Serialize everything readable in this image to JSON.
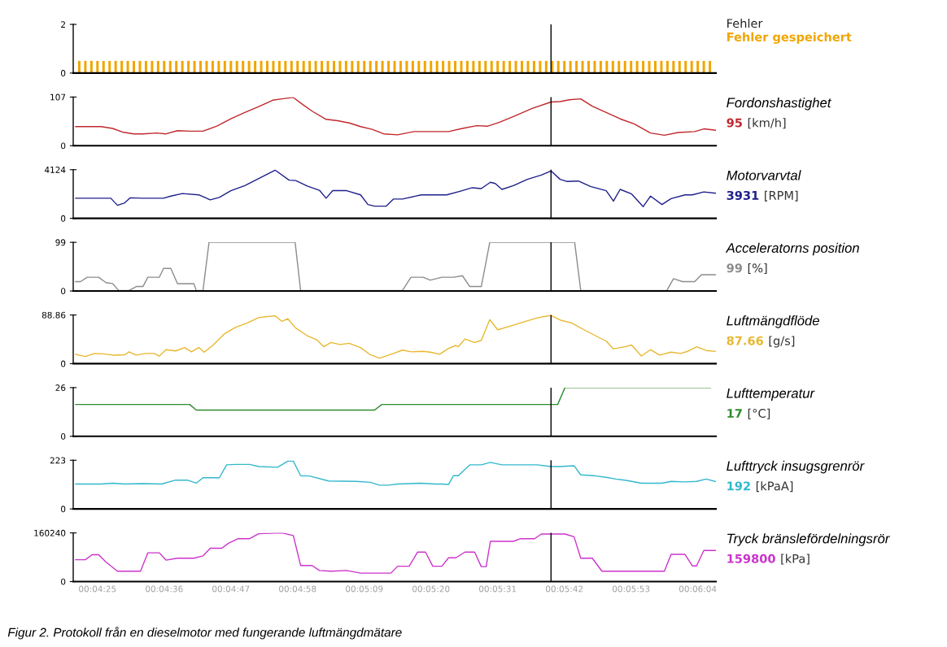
{
  "chart_data": [
    {
      "type": "bar",
      "xlim": [
        261,
        367
      ],
      "ylim": [
        0,
        2
      ],
      "yticks": [
        0,
        2
      ],
      "tick_labels": "y",
      "annotations": [
        "Fehler"
      ],
      "series": [
        {
          "name": "Fehler gespeichert",
          "color": "#f0a500",
          "x": [
            262,
            263,
            264,
            265,
            266,
            267,
            268,
            269,
            270,
            271,
            272,
            273,
            274,
            275,
            276,
            277,
            278,
            279,
            280,
            281,
            282,
            283,
            284,
            285,
            286,
            287,
            288,
            289,
            290,
            291,
            292,
            293,
            294,
            295,
            296,
            297,
            298,
            299,
            300,
            301,
            302,
            303,
            304,
            305,
            306,
            307,
            308,
            309,
            310,
            311,
            312,
            313,
            314,
            315,
            316,
            317,
            318,
            319,
            320,
            321,
            322,
            323,
            324,
            325,
            326,
            327,
            328,
            329,
            330,
            331,
            332,
            333,
            334,
            335,
            336,
            337,
            338,
            339,
            340,
            341,
            342,
            343,
            344,
            345,
            346,
            347,
            348,
            349,
            350,
            351,
            352,
            353,
            354,
            355,
            356,
            357,
            358,
            359,
            360,
            361,
            362,
            363,
            364,
            365,
            366
          ],
          "values": [
            0.5,
            0.5,
            0.5,
            0.5,
            0.5,
            0.5,
            0.5,
            0.5,
            0.5,
            0.5,
            0.5,
            0.5,
            0.5,
            0.5,
            0.5,
            0.5,
            0.5,
            0.5,
            0.5,
            0.5,
            0.5,
            0.5,
            0.5,
            0.5,
            0.5,
            0.5,
            0.5,
            0.5,
            0.5,
            0.5,
            0.5,
            0.5,
            0.5,
            0.5,
            0.5,
            0.5,
            0.5,
            0.5,
            0.5,
            0.5,
            0.5,
            0.5,
            0.5,
            0.5,
            0.5,
            0.5,
            0.5,
            0.5,
            0.5,
            0.5,
            0.5,
            0.5,
            0.5,
            0.5,
            0.5,
            0.5,
            0.5,
            0.5,
            0.5,
            0.5,
            0.5,
            0.5,
            0.5,
            0.5,
            0.5,
            0.5,
            0.5,
            0.5,
            0.5,
            0.5,
            0.5,
            0.5,
            0.5,
            0.5,
            0.5,
            0.5,
            0.5,
            0.5,
            0.5,
            0.5,
            0.5,
            0.5,
            0.5,
            0.5,
            0.5,
            0.5,
            0.5,
            0.5,
            0.5,
            0.5,
            0.5,
            0.5,
            0.5,
            0.5,
            0.5,
            0.5,
            0.5,
            0.5,
            0.5,
            0.5,
            0.5,
            0.5,
            0.5,
            0.5,
            0.5
          ]
        }
      ],
      "ref_lines": [
        {
          "axis": "x",
          "value": 339.8,
          "color": "#000000"
        }
      ]
    },
    {
      "type": "line",
      "xlim": [
        261,
        367
      ],
      "ylim": [
        0,
        107
      ],
      "yticks": [
        0,
        107
      ],
      "tick_labels": "y",
      "annotations": [
        "Fordonshastighet",
        "95",
        "[km/h]"
      ],
      "series": [
        {
          "color": "#c0282d",
          "x": [
            261.4,
            265.6,
            267.5,
            269.1,
            271.0,
            272.5,
            274.8,
            276.3,
            278.2,
            280.2,
            282.4,
            284.7,
            287.0,
            289.3,
            291.6,
            293.9,
            295.4,
            297.3,
            298.9,
            300.4,
            302.7,
            304.6,
            306.5,
            308.4,
            310.3,
            312.2,
            314.5,
            317.2,
            319.9,
            322.9,
            325.2,
            327.5,
            329.4,
            331.4,
            333.6,
            336.7,
            339.8,
            341.3,
            342.8,
            344.7,
            346.6,
            348.9,
            351.2,
            353.5,
            356.2,
            358.5,
            360.8,
            363.5,
            365.0,
            366.9
          ],
          "values": [
            42,
            42,
            38,
            30,
            26,
            26,
            28,
            26,
            33,
            32,
            32,
            43,
            59,
            73,
            86,
            100,
            103,
            106,
            90,
            76,
            58,
            55,
            50,
            42,
            36,
            26,
            24,
            31,
            31,
            31,
            38,
            44,
            43,
            52,
            64,
            82,
            96,
            97,
            101,
            103,
            87,
            73,
            59,
            48,
            28,
            23,
            29,
            31,
            37,
            34
          ]
        }
      ],
      "ref_lines": [
        {
          "axis": "x",
          "value": 339.8,
          "color": "#000000"
        }
      ]
    },
    {
      "type": "line",
      "xlim": [
        261,
        367
      ],
      "ylim": [
        0,
        4124
      ],
      "yticks": [
        0,
        4124
      ],
      "tick_labels": "y",
      "annotations": [
        "Motorvarvtal",
        "3931",
        "[RPM]"
      ],
      "series": [
        {
          "color": "#1f1f8c",
          "x": [
            261.4,
            267.2,
            268.3,
            269.5,
            270.4,
            272.5,
            275.9,
            277.1,
            279.0,
            281.7,
            283.6,
            285.1,
            287.0,
            289.3,
            291.6,
            294.3,
            296.6,
            297.7,
            299.6,
            301.6,
            302.7,
            303.8,
            306.1,
            308.4,
            309.6,
            310.7,
            312.6,
            313.8,
            315.3,
            318.4,
            322.6,
            324.9,
            326.8,
            328.3,
            329.8,
            330.6,
            331.7,
            333.6,
            335.9,
            338.2,
            339.8,
            341.3,
            342.4,
            344.3,
            346.3,
            348.9,
            350.1,
            351.2,
            353.1,
            355.0,
            356.2,
            358.1,
            359.6,
            361.9,
            363.1,
            365.0,
            366.9
          ],
          "values": [
            1706,
            1706,
            1102,
            1315,
            1742,
            1706,
            1706,
            1884,
            2097,
            1991,
            1564,
            1778,
            2346,
            2773,
            3377,
            4088,
            3235,
            3200,
            2737,
            2382,
            1706,
            2346,
            2346,
            1991,
            1173,
            1031,
            1031,
            1635,
            1635,
            1991,
            1991,
            2311,
            2595,
            2524,
            3057,
            2951,
            2453,
            2773,
            3306,
            3662,
            4017,
            3306,
            3128,
            3164,
            2702,
            2346,
            1458,
            2453,
            2062,
            995,
            1884,
            1173,
            1671,
            1991,
            1991,
            2240,
            2133
          ]
        }
      ],
      "ref_lines": [
        {
          "axis": "x",
          "value": 339.8,
          "color": "#000000"
        }
      ]
    },
    {
      "type": "line",
      "xlim": [
        261,
        367
      ],
      "ylim": [
        0,
        99
      ],
      "yticks": [
        0,
        99
      ],
      "tick_labels": "y",
      "annotations": [
        "Acceleratorns position",
        "99",
        "[%]"
      ],
      "series": [
        {
          "color": "#8c8c8c",
          "x": [
            261.4,
            262.2,
            263.3,
            265.2,
            266.4,
            267.5,
            268.5,
            270.2,
            271.4,
            272.5,
            273.3,
            275.2,
            275.9,
            277.1,
            278.2,
            280.9,
            281.3,
            282.4,
            283.4,
            297.6,
            298.5,
            315.3,
            316.7,
            318.7,
            319.9,
            321.8,
            323.7,
            325.2,
            326.4,
            328.3,
            329.7,
            343.7,
            344.7,
            358.9,
            360.0,
            361.5,
            363.5,
            364.6,
            366.9
          ],
          "values": [
            19,
            19,
            28,
            28,
            17,
            15,
            1,
            1,
            9,
            9,
            28,
            28,
            46,
            46,
            15,
            15,
            1,
            1,
            99,
            99,
            1,
            1,
            28,
            28,
            22,
            28,
            28,
            31,
            9,
            9,
            99,
            99,
            1,
            1,
            25,
            19,
            19,
            33,
            33
          ]
        }
      ],
      "ref_lines": [
        {
          "axis": "x",
          "value": 339.8,
          "color": "#000000"
        }
      ]
    },
    {
      "type": "line",
      "xlim": [
        261,
        367
      ],
      "ylim": [
        0,
        88.86
      ],
      "yticks": [
        0,
        88.86
      ],
      "tick_labels": "y",
      "annotations": [
        "Luftmängdflöde",
        "87.66",
        "[g/s]"
      ],
      "series": [
        {
          "color": "#e8b830",
          "x": [
            261.4,
            263.0,
            264.5,
            266.0,
            267.5,
            269.5,
            270.2,
            271.4,
            272.9,
            274.4,
            275.2,
            276.3,
            277.9,
            279.4,
            280.5,
            281.7,
            282.6,
            284.0,
            285.9,
            287.8,
            289.7,
            291.6,
            294.3,
            295.4,
            296.4,
            297.7,
            299.6,
            301.2,
            302.3,
            303.5,
            305.0,
            306.5,
            308.4,
            310.0,
            311.5,
            313.8,
            315.3,
            316.8,
            318.7,
            319.9,
            321.4,
            322.9,
            324.1,
            324.5,
            325.6,
            327.2,
            328.3,
            329.7,
            331.0,
            332.9,
            335.6,
            337.5,
            339.8,
            341.3,
            343.2,
            345.5,
            348.9,
            350.1,
            352.0,
            353.1,
            354.7,
            356.2,
            357.7,
            359.6,
            361.2,
            362.3,
            363.8,
            365.4,
            366.9
          ],
          "values": [
            17,
            13,
            18.5,
            17.8,
            15.5,
            16.2,
            21.6,
            15.5,
            18.5,
            18.5,
            13.9,
            25.5,
            23.2,
            29.4,
            21.6,
            29.4,
            20.9,
            33.2,
            54.1,
            66.5,
            74.2,
            84.2,
            87.3,
            77.3,
            81.9,
            64.9,
            51,
            43.3,
            30.9,
            38.6,
            34.8,
            37.1,
            29.4,
            16.2,
            10,
            18.5,
            24.7,
            21.6,
            22.4,
            20.9,
            17,
            27.8,
            33.2,
            30.9,
            44.8,
            38.6,
            42.5,
            80.4,
            61.8,
            68,
            77.3,
            83.5,
            88.1,
            79.6,
            74.2,
            60.3,
            41,
            27,
            30.9,
            34,
            13.9,
            25.5,
            15.5,
            20.9,
            18.5,
            22.4,
            30.9,
            24,
            22.4
          ]
        }
      ],
      "ref_lines": [
        {
          "axis": "x",
          "value": 339.8,
          "color": "#000000"
        }
      ]
    },
    {
      "type": "line",
      "xlim": [
        261,
        367
      ],
      "ylim": [
        0,
        26
      ],
      "yticks": [
        0,
        26
      ],
      "tick_labels": "y",
      "annotations": [
        "Lufttemperatur",
        "17",
        "[°C]"
      ],
      "series": [
        {
          "color": "#2e8b2e",
          "x": [
            261.4,
            280.2,
            281.3,
            310.7,
            311.9,
            340.9,
            342.1,
            366.1
          ],
          "values": [
            17,
            17,
            14,
            14,
            17,
            17,
            26,
            26
          ]
        }
      ],
      "ref_lines": [
        {
          "axis": "x",
          "value": 339.8,
          "color": "#000000"
        }
      ]
    },
    {
      "type": "line",
      "xlim": [
        261,
        367
      ],
      "ylim": [
        0,
        223
      ],
      "yticks": [
        0,
        223
      ],
      "tick_labels": "y",
      "annotations": [
        "Lufttryck insugsgrenrör",
        "192",
        "[kPaA]"
      ],
      "series": [
        {
          "color": "#33b8cc",
          "x": [
            261.4,
            265.6,
            267.5,
            269.5,
            272.5,
            275.6,
            277.9,
            279.8,
            281.3,
            282.4,
            285.1,
            286.3,
            287.8,
            290.1,
            291.6,
            294.7,
            296.4,
            297.3,
            298.5,
            300.0,
            303.1,
            307.7,
            310.0,
            311.5,
            313.0,
            314.5,
            318.4,
            320.7,
            321.8,
            322.9,
            323.7,
            324.5,
            326.4,
            328.3,
            329.8,
            331.7,
            334.4,
            337.5,
            339.8,
            341.3,
            343.6,
            344.7,
            347.0,
            348.9,
            350.5,
            352.4,
            354.7,
            358.1,
            359.6,
            361.9,
            363.8,
            365.4,
            366.9
          ],
          "values": [
            114,
            114,
            118,
            114,
            116,
            114,
            132,
            132,
            118,
            143,
            143,
            202,
            204,
            204,
            194,
            191,
            219,
            219,
            152,
            151,
            128,
            126,
            122,
            109,
            109,
            114,
            118,
            114,
            114,
            112,
            152,
            152,
            202,
            202,
            213,
            202,
            202,
            202,
            194,
            194,
            198,
            156,
            152,
            145,
            137,
            130,
            118,
            118,
            126,
            124,
            126,
            137,
            126
          ]
        }
      ],
      "ref_lines": [
        {
          "axis": "x",
          "value": 339.8,
          "color": "#000000"
        }
      ]
    },
    {
      "type": "line",
      "xlim": [
        261,
        367
      ],
      "ylim": [
        0,
        160240
      ],
      "yticks": [
        0,
        160240
      ],
      "xticks": [
        {
          "value": 265,
          "label": "00:04:25"
        },
        {
          "value": 276,
          "label": "00:04:36"
        },
        {
          "value": 287,
          "label": "00:04:47"
        },
        {
          "value": 298,
          "label": "00:04:58"
        },
        {
          "value": 309,
          "label": "00:05:09"
        },
        {
          "value": 320,
          "label": "00:05:20"
        },
        {
          "value": 331,
          "label": "00:05:31"
        },
        {
          "value": 342,
          "label": "00:05:42"
        },
        {
          "value": 353,
          "label": "00:05:53"
        },
        {
          "value": 364,
          "label": "00:06:04"
        }
      ],
      "annotations": [
        "Tryck bränslefördelningsrör",
        "159800",
        "[kPa]",
        "Figur 2. Protokoll från en dieselmotor med fungerande luftmängdmätare"
      ],
      "series": [
        {
          "color": "#cc33cc",
          "x": [
            261.4,
            263.0,
            264.1,
            265.2,
            266.4,
            268.3,
            272.1,
            273.3,
            275.2,
            276.3,
            278.2,
            280.9,
            282.4,
            283.6,
            285.5,
            286.6,
            288.2,
            290.1,
            291.6,
            295.4,
            297.3,
            298.5,
            300.4,
            301.6,
            303.5,
            306.1,
            308.4,
            313.4,
            314.5,
            316.4,
            317.8,
            319.1,
            320.3,
            321.8,
            322.9,
            324.1,
            325.6,
            327.2,
            328.3,
            329.1,
            329.8,
            333.6,
            334.8,
            337.1,
            338.2,
            342.1,
            343.6,
            344.7,
            346.6,
            348.2,
            358.5,
            359.6,
            361.9,
            363.1,
            363.8,
            365.0,
            366.9
          ],
          "values": [
            71900,
            71900,
            88300,
            88300,
            64300,
            34100,
            34100,
            94600,
            94600,
            70700,
            77000,
            77000,
            84500,
            109800,
            109800,
            126200,
            141300,
            141300,
            157700,
            160200,
            151400,
            53000,
            53000,
            36600,
            34100,
            36600,
            27800,
            27800,
            50500,
            50500,
            97100,
            97100,
            50500,
            50500,
            78200,
            78200,
            97100,
            97100,
            49200,
            49200,
            132500,
            132500,
            141300,
            141300,
            156500,
            156500,
            147600,
            77000,
            77000,
            34100,
            34100,
            89600,
            89600,
            51700,
            51700,
            102200,
            102200
          ]
        }
      ],
      "ref_lines": [
        {
          "axis": "x",
          "value": 339.8,
          "color": "#000000"
        }
      ]
    }
  ]
}
